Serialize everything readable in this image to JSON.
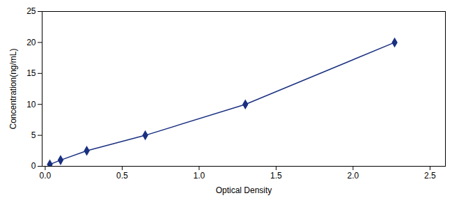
{
  "chart_data": {
    "type": "line",
    "x": [
      0.03,
      0.1,
      0.27,
      0.65,
      1.3,
      2.27
    ],
    "values": [
      0.3,
      1.0,
      2.5,
      5.0,
      10.0,
      20.0
    ],
    "color": "#1a3080",
    "marker": "diamond",
    "line_style": "solid",
    "xlabel": "Optical Density",
    "ylabel": "Concentration(ng/mL)",
    "xlim": [
      -0.02,
      2.6
    ],
    "ylim": [
      0,
      25
    ],
    "xticks": [
      {
        "value": 0,
        "label": "0.0"
      },
      {
        "value": 0.5,
        "label": "0.5"
      },
      {
        "value": 1,
        "label": "1.0"
      },
      {
        "value": 1.5,
        "label": "1.5"
      },
      {
        "value": 2,
        "label": "2.0"
      },
      {
        "value": 2.5,
        "label": "2.5"
      }
    ],
    "yticks": [
      0,
      5,
      10,
      15,
      20,
      25
    ],
    "grid": false
  }
}
